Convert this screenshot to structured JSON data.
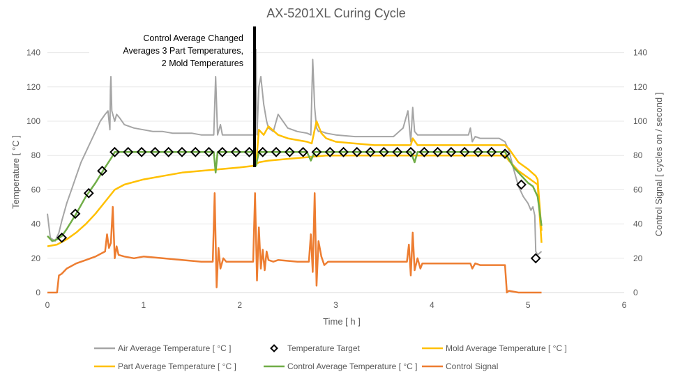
{
  "chart_data": {
    "type": "line",
    "title": "AX-5201XL Curing Cycle",
    "xlabel": "Time [ h ]",
    "ylabel": "Temperature [ °C ]",
    "y2label": "Control Signal [ cycles on / second ]",
    "xlim": [
      0,
      6
    ],
    "ylim": [
      0,
      150
    ],
    "y2lim": [
      0,
      150
    ],
    "x_ticks": [
      "0",
      "1",
      "2",
      "3",
      "4",
      "5",
      "6"
    ],
    "y_ticks": [
      "0",
      "20",
      "40",
      "60",
      "80",
      "100",
      "120",
      "140"
    ],
    "y2_ticks": [
      "0",
      "20",
      "40",
      "60",
      "80",
      "100",
      "120",
      "140"
    ],
    "grid": "horizontal",
    "legend_position": "bottom",
    "annotation": {
      "x": 2.14,
      "lines": [
        "Control Average Changed",
        "Averages 3 Part Temperatures,",
        "2 Mold Temperatures"
      ]
    },
    "series": [
      {
        "name": "Air Average Temperature [ °C ]",
        "color": "#a5a5a5",
        "style": "line",
        "x": [
          0,
          0.03,
          0.08,
          0.12,
          0.15,
          0.2,
          0.25,
          0.3,
          0.35,
          0.4,
          0.45,
          0.5,
          0.55,
          0.6,
          0.63,
          0.65,
          0.655,
          0.66,
          0.67,
          0.7,
          0.72,
          0.75,
          0.8,
          0.9,
          1.0,
          1.1,
          1.2,
          1.3,
          1.4,
          1.5,
          1.6,
          1.7,
          1.73,
          1.75,
          1.77,
          1.8,
          1.82,
          1.85,
          1.9,
          2.0,
          2.1,
          2.15,
          2.17,
          2.18,
          2.2,
          2.22,
          2.25,
          2.28,
          2.3,
          2.35,
          2.4,
          2.5,
          2.6,
          2.7,
          2.74,
          2.76,
          2.78,
          2.8,
          2.82,
          2.85,
          2.9,
          3.0,
          3.2,
          3.4,
          3.6,
          3.7,
          3.75,
          3.78,
          3.8,
          3.82,
          3.85,
          3.9,
          4.0,
          4.2,
          4.38,
          4.4,
          4.42,
          4.45,
          4.5,
          4.6,
          4.7,
          4.76,
          4.8,
          4.85,
          4.9,
          4.95,
          5.0,
          5.03,
          5.05,
          5.07,
          5.08,
          5.1,
          5.12,
          5.14
        ],
        "y": [
          46,
          32,
          30,
          35,
          42,
          52,
          60,
          68,
          76,
          82,
          88,
          94,
          100,
          104,
          106,
          95,
          118,
          126,
          106,
          100,
          104,
          102,
          98,
          96,
          95,
          94,
          94,
          93,
          93,
          93,
          92,
          92,
          92,
          126,
          92,
          98,
          92,
          92,
          92,
          92,
          92,
          92,
          142,
          92,
          120,
          126,
          110,
          100,
          96,
          94,
          104,
          96,
          94,
          93,
          92,
          136,
          108,
          96,
          94,
          94,
          93,
          92,
          91,
          91,
          91,
          96,
          106,
          88,
          108,
          94,
          92,
          92,
          92,
          92,
          92,
          96,
          88,
          91,
          90,
          90,
          90,
          88,
          83,
          72,
          62,
          56,
          52,
          48,
          50,
          45,
          24,
          22,
          23,
          24
        ]
      },
      {
        "name": "Temperature Target",
        "color": "#000000",
        "style": "diamond",
        "x": [
          0.15,
          0.29,
          0.43,
          0.57,
          0.7,
          0.84,
          0.98,
          1.12,
          1.26,
          1.4,
          1.54,
          1.68,
          1.82,
          1.96,
          2.1,
          2.24,
          2.38,
          2.52,
          2.66,
          2.8,
          2.94,
          3.08,
          3.22,
          3.36,
          3.5,
          3.64,
          3.78,
          3.92,
          4.06,
          4.2,
          4.34,
          4.48,
          4.62,
          4.76,
          4.93,
          5.08
        ],
        "y": [
          32,
          46,
          58,
          71,
          82,
          82,
          82,
          82,
          82,
          82,
          82,
          82,
          82,
          82,
          82,
          82,
          82,
          82,
          82,
          82,
          82,
          82,
          82,
          82,
          82,
          82,
          82,
          82,
          82,
          82,
          82,
          82,
          82,
          81,
          63,
          20
        ]
      },
      {
        "name": "Mold Average Temperature [ °C ]",
        "color": "#ffc000",
        "style": "line",
        "x": [
          0,
          0.1,
          0.2,
          0.3,
          0.4,
          0.5,
          0.6,
          0.7,
          0.8,
          1.0,
          1.2,
          1.4,
          1.6,
          1.8,
          2.0,
          2.15,
          2.2,
          2.3,
          2.5,
          2.7,
          2.9,
          3.2,
          3.6,
          4.0,
          4.4,
          4.76,
          4.8,
          4.9,
          5.0,
          5.1,
          5.14
        ],
        "y": [
          27,
          28,
          31,
          35,
          40,
          46,
          53,
          60,
          63,
          66,
          68,
          70,
          71,
          72,
          73,
          74,
          76,
          77,
          78,
          79,
          80,
          80,
          80,
          80,
          80,
          80,
          77,
          71,
          67,
          63,
          29
        ]
      },
      {
        "name": "Part Average Temperature [ °C ]",
        "color": "#ffc000",
        "style": "line",
        "x": [
          2.17,
          2.2,
          2.25,
          2.3,
          2.4,
          2.5,
          2.6,
          2.7,
          2.75,
          2.78,
          2.8,
          2.85,
          2.9,
          3.0,
          3.2,
          3.4,
          3.6,
          3.78,
          3.8,
          3.85,
          4.0,
          4.2,
          4.4,
          4.6,
          4.76,
          4.8,
          4.85,
          4.9,
          5.0,
          5.08,
          5.1,
          5.14
        ],
        "y": [
          74,
          95,
          92,
          97,
          92,
          90,
          89,
          88,
          87,
          95,
          100,
          93,
          90,
          88,
          87,
          86,
          86,
          86,
          90,
          86,
          86,
          86,
          86,
          86,
          86,
          84,
          80,
          76,
          72,
          68,
          66,
          36
        ]
      },
      {
        "name": "Control Average Temperature [ °C ]",
        "color": "#70ad47",
        "style": "line",
        "x": [
          0,
          0.05,
          0.1,
          0.15,
          0.2,
          0.3,
          0.4,
          0.5,
          0.6,
          0.67,
          0.7,
          0.75,
          0.9,
          1.1,
          1.3,
          1.5,
          1.7,
          1.73,
          1.75,
          1.77,
          1.8,
          2.0,
          2.15,
          2.17,
          2.2,
          2.4,
          2.6,
          2.7,
          2.74,
          2.78,
          2.82,
          2.9,
          3.2,
          3.5,
          3.78,
          3.82,
          3.85,
          4.0,
          4.3,
          4.6,
          4.76,
          4.8,
          4.85,
          4.9,
          5.0,
          5.05,
          5.1,
          5.14
        ],
        "y": [
          33,
          30,
          31,
          33,
          37,
          46,
          56,
          64,
          73,
          79,
          82,
          82,
          82,
          82,
          82,
          82,
          82,
          82,
          70,
          82,
          82,
          82,
          82,
          74,
          82,
          82,
          82,
          82,
          77,
          82,
          82,
          82,
          82,
          82,
          82,
          76,
          82,
          82,
          82,
          82,
          82,
          78,
          73,
          70,
          64,
          62,
          56,
          39
        ]
      },
      {
        "name": "Control Signal",
        "color": "#ed7d31",
        "style": "line",
        "axis": "secondary",
        "x": [
          0,
          0.1,
          0.12,
          0.15,
          0.2,
          0.3,
          0.4,
          0.5,
          0.6,
          0.62,
          0.64,
          0.66,
          0.68,
          0.7,
          0.72,
          0.74,
          0.8,
          0.9,
          1.0,
          1.2,
          1.4,
          1.6,
          1.72,
          1.74,
          1.76,
          1.78,
          1.8,
          1.83,
          1.86,
          1.9,
          2.0,
          2.14,
          2.16,
          2.18,
          2.2,
          2.22,
          2.24,
          2.26,
          2.28,
          2.3,
          2.35,
          2.4,
          2.6,
          2.72,
          2.74,
          2.76,
          2.78,
          2.8,
          2.82,
          2.85,
          2.88,
          2.92,
          3.0,
          3.2,
          3.5,
          3.74,
          3.76,
          3.78,
          3.8,
          3.82,
          3.85,
          3.88,
          3.9,
          4.0,
          4.3,
          4.4,
          4.42,
          4.45,
          4.5,
          4.7,
          4.76,
          4.78,
          4.8,
          4.9,
          5.0,
          5.14
        ],
        "y": [
          0,
          0,
          10,
          11,
          14,
          17,
          19,
          21,
          24,
          34,
          26,
          29,
          50,
          20,
          27,
          22,
          21,
          20,
          21,
          20,
          19,
          18,
          18,
          58,
          3,
          26,
          14,
          20,
          18,
          18,
          18,
          18,
          58,
          7,
          38,
          14,
          25,
          13,
          24,
          19,
          18,
          19,
          18,
          18,
          34,
          12,
          58,
          4,
          30,
          21,
          16,
          18,
          18,
          18,
          18,
          18,
          28,
          10,
          35,
          13,
          20,
          14,
          17,
          17,
          17,
          17,
          14,
          17,
          16,
          16,
          16,
          0,
          1,
          0,
          0,
          0
        ]
      }
    ]
  }
}
